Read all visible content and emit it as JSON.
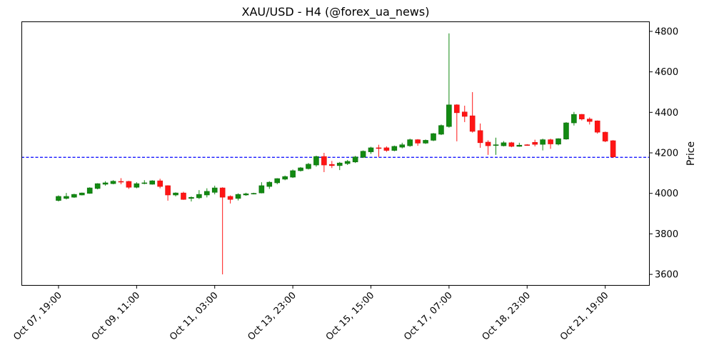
{
  "chart_data": {
    "type": "candlestick",
    "title": "XAU/USD - H4 (@forex_ua_news)",
    "ylabel": "Price",
    "yaxis_side": "right",
    "ylim": [
      3544,
      4849
    ],
    "yticks": [
      3600,
      3800,
      4000,
      4200,
      4400,
      4600,
      4800
    ],
    "xtick_labels": [
      {
        "index": 0,
        "label": "Oct 07, 19:00"
      },
      {
        "index": 10,
        "label": "Oct 09, 11:00"
      },
      {
        "index": 20,
        "label": "Oct 11, 03:00"
      },
      {
        "index": 30,
        "label": "Oct 13, 23:00"
      },
      {
        "index": 40,
        "label": "Oct 15, 15:00"
      },
      {
        "index": 50,
        "label": "Oct 17, 07:00"
      },
      {
        "index": 60,
        "label": "Oct 18, 23:00"
      },
      {
        "index": 70,
        "label": "Oct 21, 19:00"
      }
    ],
    "hline": {
      "value": 4178,
      "style": "dashed",
      "color": "#0000ff"
    },
    "colors": {
      "up": "#128a12",
      "down": "#ff1515"
    },
    "ohlc": [
      [
        3965,
        3990,
        3960,
        3985
      ],
      [
        3975,
        4002,
        3970,
        3985
      ],
      [
        3981,
        3998,
        3978,
        3995
      ],
      [
        3992,
        4004,
        3990,
        4002
      ],
      [
        4000,
        4030,
        3998,
        4027
      ],
      [
        4024,
        4050,
        4020,
        4048
      ],
      [
        4045,
        4060,
        4038,
        4052
      ],
      [
        4048,
        4065,
        4045,
        4060
      ],
      [
        4059,
        4075,
        4045,
        4057
      ],
      [
        4059,
        4062,
        4022,
        4030
      ],
      [
        4030,
        4055,
        4025,
        4048
      ],
      [
        4050,
        4065,
        4045,
        4052
      ],
      [
        4045,
        4065,
        4043,
        4062
      ],
      [
        4062,
        4072,
        4025,
        4034
      ],
      [
        4038,
        4040,
        3964,
        3992
      ],
      [
        3992,
        4005,
        3985,
        4002
      ],
      [
        4002,
        4008,
        3968,
        3970
      ],
      [
        3975,
        3985,
        3960,
        3980
      ],
      [
        3978,
        4016,
        3972,
        3995
      ],
      [
        3992,
        4025,
        3980,
        4010
      ],
      [
        4005,
        4038,
        3995,
        4027
      ],
      [
        4027,
        4030,
        3600,
        3981
      ],
      [
        3985,
        3990,
        3950,
        3970
      ],
      [
        3975,
        4000,
        3965,
        3995
      ],
      [
        3992,
        4003,
        3988,
        3998
      ],
      [
        3998,
        4003,
        3995,
        4000
      ],
      [
        4002,
        4055,
        4000,
        4038
      ],
      [
        4034,
        4060,
        4022,
        4055
      ],
      [
        4052,
        4075,
        4045,
        4073
      ],
      [
        4070,
        4088,
        4065,
        4083
      ],
      [
        4080,
        4118,
        4076,
        4112
      ],
      [
        4112,
        4130,
        4108,
        4126
      ],
      [
        4122,
        4150,
        4118,
        4144
      ],
      [
        4140,
        4186,
        4132,
        4182
      ],
      [
        4182,
        4200,
        4105,
        4140
      ],
      [
        4143,
        4160,
        4125,
        4137
      ],
      [
        4137,
        4155,
        4115,
        4150
      ],
      [
        4147,
        4165,
        4140,
        4158
      ],
      [
        4155,
        4185,
        4150,
        4180
      ],
      [
        4178,
        4212,
        4175,
        4208
      ],
      [
        4205,
        4230,
        4195,
        4225
      ],
      [
        4225,
        4240,
        4180,
        4224
      ],
      [
        4225,
        4232,
        4205,
        4212
      ],
      [
        4212,
        4236,
        4208,
        4232
      ],
      [
        4228,
        4250,
        4222,
        4240
      ],
      [
        4235,
        4270,
        4230,
        4265
      ],
      [
        4265,
        4268,
        4235,
        4248
      ],
      [
        4248,
        4266,
        4244,
        4262
      ],
      [
        4262,
        4298,
        4258,
        4295
      ],
      [
        4292,
        4340,
        4288,
        4335
      ],
      [
        4330,
        4790,
        4325,
        4437
      ],
      [
        4437,
        4440,
        4257,
        4398
      ],
      [
        4402,
        4433,
        4352,
        4380
      ],
      [
        4383,
        4500,
        4300,
        4306
      ],
      [
        4310,
        4345,
        4225,
        4250
      ],
      [
        4253,
        4262,
        4190,
        4235
      ],
      [
        4238,
        4275,
        4190,
        4240
      ],
      [
        4235,
        4258,
        4232,
        4250
      ],
      [
        4250,
        4254,
        4228,
        4232
      ],
      [
        4232,
        4250,
        4230,
        4238
      ],
      [
        4240,
        4243,
        4235,
        4238
      ],
      [
        4252,
        4265,
        4232,
        4242
      ],
      [
        4242,
        4270,
        4212,
        4265
      ],
      [
        4265,
        4270,
        4220,
        4244
      ],
      [
        4243,
        4272,
        4237,
        4270
      ],
      [
        4268,
        4352,
        4265,
        4348
      ],
      [
        4348,
        4402,
        4335,
        4390
      ],
      [
        4390,
        4392,
        4360,
        4367
      ],
      [
        4367,
        4375,
        4340,
        4355
      ],
      [
        4358,
        4360,
        4295,
        4302
      ],
      [
        4302,
        4305,
        4253,
        4258
      ],
      [
        4260,
        4263,
        4175,
        4180
      ]
    ]
  }
}
